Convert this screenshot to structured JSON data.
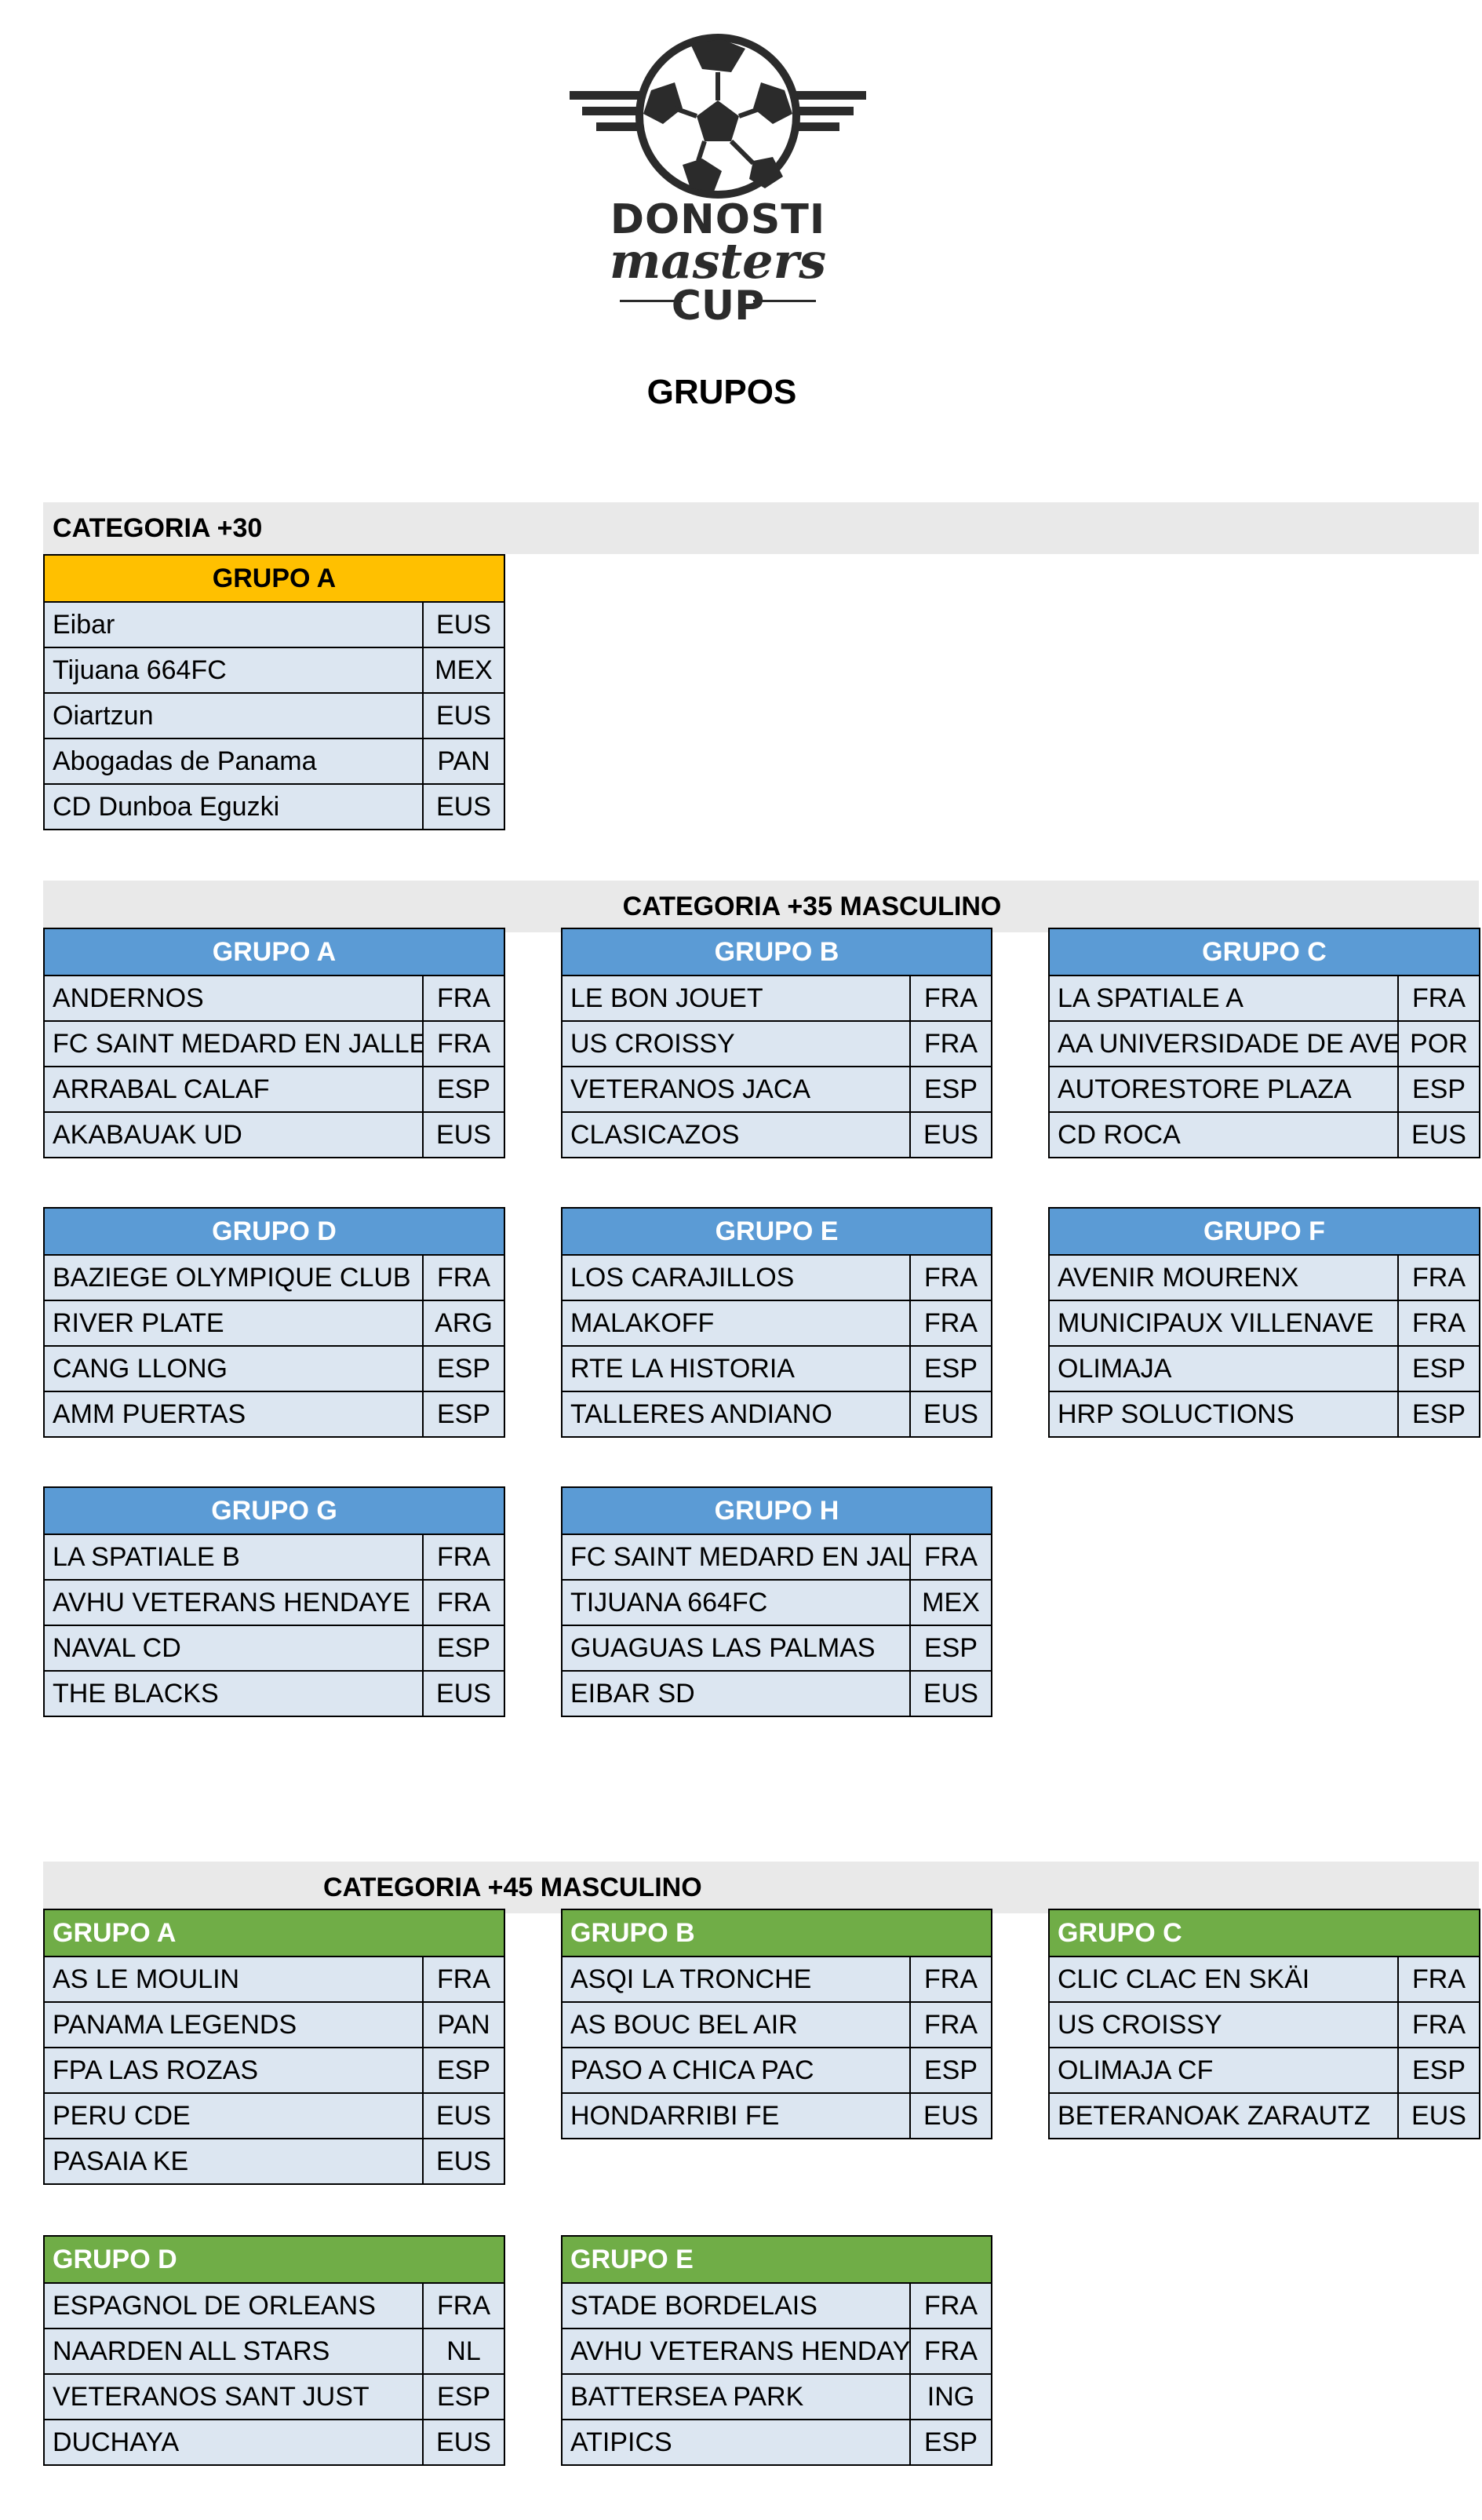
{
  "logo": {
    "line1": "DONOSTI",
    "line2": "masters",
    "line3": "CUP"
  },
  "title": "GRUPOS",
  "cat30": {
    "label": "CATEGORIA +30",
    "groups": [
      {
        "name": "GRUPO A",
        "teams": [
          [
            "Eibar",
            "EUS"
          ],
          [
            "Tijuana 664FC",
            "MEX"
          ],
          [
            "Oiartzun",
            "EUS"
          ],
          [
            "Abogadas de Panama",
            "PAN"
          ],
          [
            "CD Dunboa Eguzki",
            "EUS"
          ]
        ]
      }
    ]
  },
  "cat35": {
    "label": "CATEGORIA +35 MASCULINO",
    "groups": [
      {
        "name": "GRUPO A",
        "teams": [
          [
            "ANDERNOS",
            "FRA"
          ],
          [
            "FC SAINT MEDARD EN JALLES",
            "FRA"
          ],
          [
            "ARRABAL CALAF",
            "ESP"
          ],
          [
            "AKABAUAK UD",
            "EUS"
          ]
        ]
      },
      {
        "name": "GRUPO B",
        "teams": [
          [
            "LE BON JOUET",
            "FRA"
          ],
          [
            "US CROISSY",
            "FRA"
          ],
          [
            "VETERANOS JACA",
            "ESP"
          ],
          [
            "CLASICAZOS",
            "EUS"
          ]
        ]
      },
      {
        "name": "GRUPO C",
        "teams": [
          [
            "LA SPATIALE A",
            "FRA"
          ],
          [
            "AA UNIVERSIDADE DE AVEIRO",
            "POR"
          ],
          [
            "AUTORESTORE PLAZA",
            "ESP"
          ],
          [
            "CD ROCA",
            "EUS"
          ]
        ]
      },
      {
        "name": "GRUPO D",
        "teams": [
          [
            "BAZIEGE OLYMPIQUE CLUB",
            "FRA"
          ],
          [
            "RIVER PLATE",
            "ARG"
          ],
          [
            "CANG LLONG",
            "ESP"
          ],
          [
            "AMM PUERTAS",
            "ESP"
          ]
        ]
      },
      {
        "name": "GRUPO E",
        "teams": [
          [
            "LOS CARAJILLOS",
            "FRA"
          ],
          [
            "MALAKOFF",
            "FRA"
          ],
          [
            "RTE LA HISTORIA",
            "ESP"
          ],
          [
            "TALLERES ANDIANO",
            "EUS"
          ]
        ]
      },
      {
        "name": "GRUPO F",
        "teams": [
          [
            "AVENIR MOURENX",
            "FRA"
          ],
          [
            "MUNICIPAUX VILLENAVE",
            "FRA"
          ],
          [
            "OLIMAJA",
            "ESP"
          ],
          [
            "HRP SOLUCTIONS",
            "ESP"
          ]
        ]
      },
      {
        "name": "GRUPO G",
        "teams": [
          [
            "LA SPATIALE B",
            "FRA"
          ],
          [
            "AVHU VETERANS HENDAYE",
            "FRA"
          ],
          [
            "NAVAL CD",
            "ESP"
          ],
          [
            "THE BLACKS",
            "EUS"
          ]
        ]
      },
      {
        "name": "GRUPO H",
        "teams": [
          [
            "FC SAINT MEDARD EN JALLES",
            "FRA"
          ],
          [
            "TIJUANA 664FC",
            "MEX"
          ],
          [
            "GUAGUAS LAS PALMAS",
            "ESP"
          ],
          [
            "EIBAR SD",
            "EUS"
          ]
        ]
      }
    ]
  },
  "cat45": {
    "label": "CATEGORIA +45 MASCULINO",
    "groups": [
      {
        "name": "GRUPO A",
        "teams": [
          [
            "AS LE MOULIN",
            "FRA"
          ],
          [
            "PANAMA LEGENDS",
            "PAN"
          ],
          [
            "FPA LAS ROZAS",
            "ESP"
          ],
          [
            "PERU CDE",
            "EUS"
          ],
          [
            "PASAIA KE",
            "EUS"
          ]
        ]
      },
      {
        "name": "GRUPO B",
        "teams": [
          [
            "ASQI LA TRONCHE",
            "FRA"
          ],
          [
            "AS BOUC BEL AIR",
            "FRA"
          ],
          [
            "PASO A CHICA PAC",
            "ESP"
          ],
          [
            "HONDARRIBI FE",
            "EUS"
          ]
        ]
      },
      {
        "name": "GRUPO C",
        "teams": [
          [
            "CLIC CLAC EN SKÄI",
            "FRA"
          ],
          [
            "US CROISSY",
            "FRA"
          ],
          [
            "OLIMAJA CF",
            "ESP"
          ],
          [
            "BETERANOAK ZARAUTZ",
            "EUS"
          ]
        ]
      },
      {
        "name": "GRUPO D",
        "teams": [
          [
            "ESPAGNOL DE ORLEANS",
            "FRA"
          ],
          [
            "NAARDEN ALL STARS",
            "NL"
          ],
          [
            "VETERANOS SANT JUST",
            "ESP"
          ],
          [
            "DUCHAYA",
            "EUS"
          ]
        ]
      },
      {
        "name": "GRUPO E",
        "teams": [
          [
            "STADE BORDELAIS",
            "FRA"
          ],
          [
            "AVHU VETERANS HENDAYE",
            "FRA"
          ],
          [
            "BATTERSEA PARK",
            "ING"
          ],
          [
            "ATIPICS",
            "ESP"
          ]
        ]
      }
    ]
  }
}
